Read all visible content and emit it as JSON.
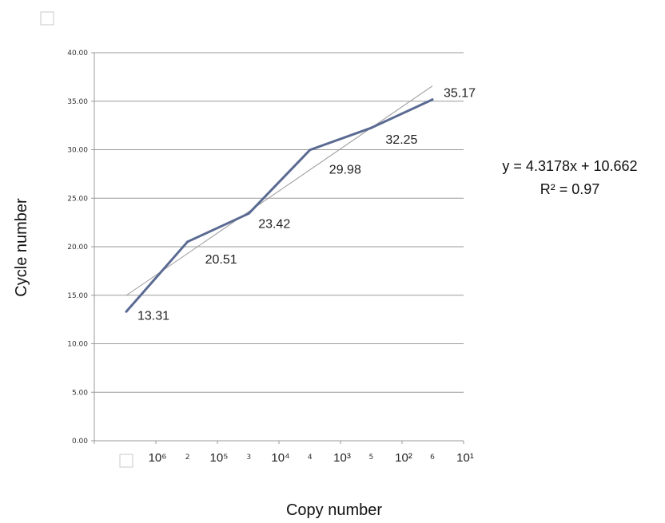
{
  "chart_data": {
    "type": "line",
    "title": "",
    "xlabel": "Copy number",
    "ylabel": "Cycle number",
    "y_ticks": [
      "0.00",
      "5.00",
      "10.00",
      "15.00",
      "20.00",
      "25.00",
      "30.00",
      "35.00",
      "40.00"
    ],
    "ylim": [
      0,
      40
    ],
    "x_category_ticks": [
      "1",
      "2",
      "3",
      "4",
      "5",
      "6"
    ],
    "x_copy_labels": [
      "10⁶",
      "10⁵",
      "10⁴",
      "10³",
      "10²",
      "10¹"
    ],
    "grid": true,
    "series": [
      {
        "x": [
          1,
          2,
          3,
          4,
          5,
          6
        ],
        "values": [
          13.31,
          20.51,
          23.42,
          29.98,
          32.25,
          35.17
        ],
        "labels": [
          "13.31",
          "20.51",
          "23.42",
          "29.98",
          "32.25",
          "35.17"
        ],
        "color": "#5a6a92"
      }
    ],
    "trendline": {
      "slope": 4.3178,
      "intercept": 10.662,
      "equation": "y = 4.3178x + 10.662",
      "r2": "R² = 0.97",
      "color": "#999999"
    }
  }
}
